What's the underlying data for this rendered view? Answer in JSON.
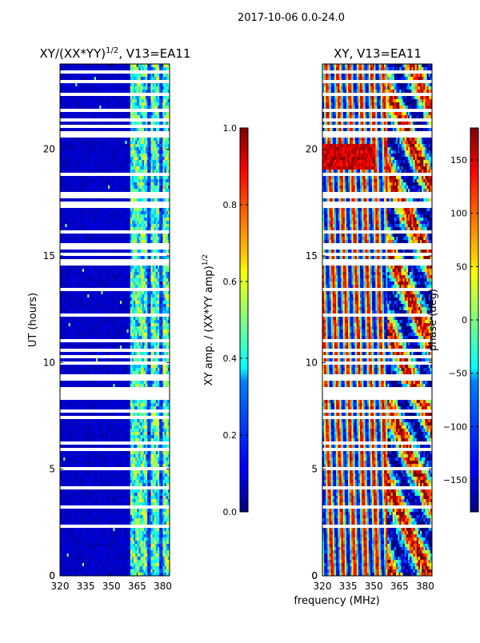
{
  "figure": {
    "suptitle": "2017-10-06 0.0-24.0",
    "xlabel": "frequency (MHz)",
    "ylabel": "UT (hours)"
  },
  "colors": {
    "background": "#ffffff",
    "axis": "#000000",
    "flag": "#ffffff"
  },
  "chart_data": [
    {
      "type": "heatmap",
      "title_main": "XY/(XX*YY)",
      "title_exp": "1/2",
      "title_tail": ", V13=EA11",
      "xlabel": "frequency (MHz)",
      "ylabel": "UT (hours)",
      "xlim": [
        320,
        384
      ],
      "ylim": [
        0,
        24
      ],
      "xticks": [
        320,
        335,
        350,
        365,
        380
      ],
      "yticks": [
        0,
        5,
        10,
        15,
        20
      ],
      "colormap": "jet",
      "colorbar": {
        "label_main": "XY amp. / (XX*YY amp)",
        "label_exp": "1/2",
        "range": [
          0.0,
          1.0
        ],
        "ticks": [
          0.0,
          0.2,
          0.4,
          0.6,
          0.8,
          1.0
        ],
        "tick_labels": [
          "0.0",
          "0.2",
          "0.4",
          "0.6",
          "0.8",
          "1.0"
        ]
      },
      "description_values": {
        "low_band_320_360": 0.05,
        "high_band_362_384": 0.45
      }
    },
    {
      "type": "heatmap",
      "title_main": "XY, V13=EA11",
      "xlabel": "frequency (MHz)",
      "ylabel": "",
      "xlim": [
        320,
        384
      ],
      "ylim": [
        0,
        24
      ],
      "xticks": [
        320,
        335,
        350,
        365,
        380
      ],
      "yticks": [
        0,
        5,
        10,
        15,
        20
      ],
      "colormap": "jet",
      "colorbar": {
        "label_main": "phase (deg)",
        "range": [
          -180,
          180
        ],
        "ticks": [
          -150,
          -100,
          -50,
          0,
          50,
          100,
          150
        ],
        "tick_labels": [
          "−150",
          "−100",
          "−50",
          "0",
          "50",
          "100",
          "150"
        ]
      }
    }
  ],
  "flagged_ut_ranges": [
    [
      8.2,
      8.8
    ],
    [
      9.2,
      9.4
    ],
    [
      9.9,
      10.1
    ],
    [
      10.2,
      10.3
    ],
    [
      10.5,
      10.6
    ],
    [
      10.75,
      10.85
    ],
    [
      11.0,
      11.1
    ],
    [
      14.6,
      14.8
    ],
    [
      15.0,
      15.2
    ],
    [
      15.35,
      15.6
    ],
    [
      17.3,
      17.5
    ],
    [
      17.7,
      18.0
    ],
    [
      19.3,
      19.4
    ],
    [
      20.2,
      20.3
    ],
    [
      20.6,
      20.8
    ],
    [
      21.0,
      21.1
    ],
    [
      21.3,
      21.4
    ],
    [
      22.5,
      22.6
    ],
    [
      23.1,
      23.2
    ],
    [
      23.6,
      23.7
    ],
    [
      0.3,
      0.35
    ],
    [
      1.0,
      1.05
    ],
    [
      1.5,
      1.55
    ],
    [
      1.9,
      1.95
    ],
    [
      2.1,
      2.15
    ],
    [
      2.3,
      2.35
    ],
    [
      2.8,
      2.85
    ],
    [
      3.2,
      3.25
    ],
    [
      3.6,
      3.65
    ],
    [
      4.1,
      4.15
    ],
    [
      4.5,
      4.55
    ],
    [
      5.0,
      5.05
    ],
    [
      5.5,
      5.55
    ],
    [
      5.9,
      5.95
    ],
    [
      6.2,
      6.25
    ],
    [
      6.6,
      6.65
    ],
    [
      7.0,
      7.05
    ],
    [
      7.4,
      7.45
    ],
    [
      7.7,
      7.75
    ],
    [
      12.2,
      12.25
    ],
    [
      12.6,
      12.65
    ],
    [
      13.0,
      13.05
    ],
    [
      13.4,
      13.45
    ],
    [
      13.8,
      13.85
    ],
    [
      16.1,
      16.15
    ],
    [
      16.5,
      16.55
    ],
    [
      16.9,
      16.95
    ],
    [
      18.4,
      18.45
    ],
    [
      18.8,
      18.85
    ],
    [
      21.8,
      21.85
    ],
    [
      22.2,
      22.25
    ]
  ]
}
